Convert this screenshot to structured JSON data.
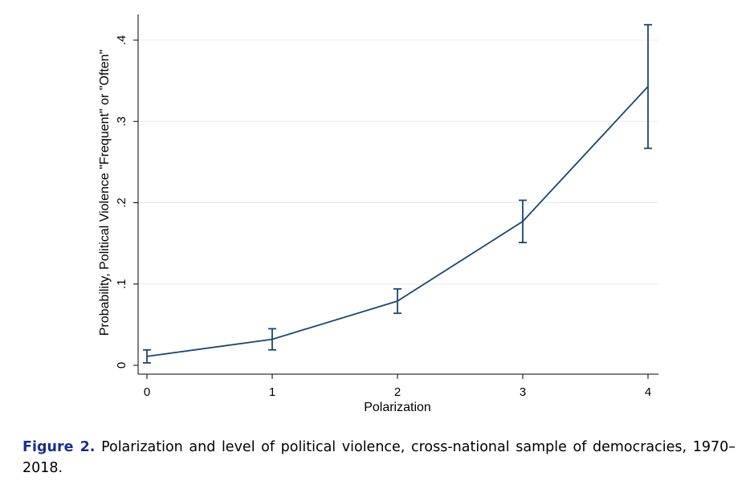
{
  "caption": {
    "label": "Figure 2.",
    "text": "Polarization and level of political violence, cross-national sample of democracies, 1970–2018."
  },
  "chart_data": {
    "type": "line",
    "title": "",
    "xlabel": "Polarization",
    "ylabel": "Probability, Political Violence \"Frequent\" or \"Often\"",
    "x": [
      0,
      1,
      2,
      3,
      4
    ],
    "x_tick_labels": [
      "0",
      "1",
      "2",
      "3",
      "4"
    ],
    "y_ticks": [
      0,
      0.1,
      0.2,
      0.3,
      0.4
    ],
    "y_tick_labels": [
      "0",
      ".1",
      ".2",
      ".3",
      ".4"
    ],
    "ylim": [
      0,
      0.42
    ],
    "xlim": [
      0,
      4
    ],
    "grid": "horizontal",
    "series": [
      {
        "values": [
          0.011,
          0.032,
          0.079,
          0.177,
          0.343
        ],
        "ci_lower": [
          0.003,
          0.019,
          0.064,
          0.151,
          0.267
        ],
        "ci_upper": [
          0.019,
          0.045,
          0.094,
          0.203,
          0.419
        ],
        "color": "#1a476f"
      }
    ]
  }
}
